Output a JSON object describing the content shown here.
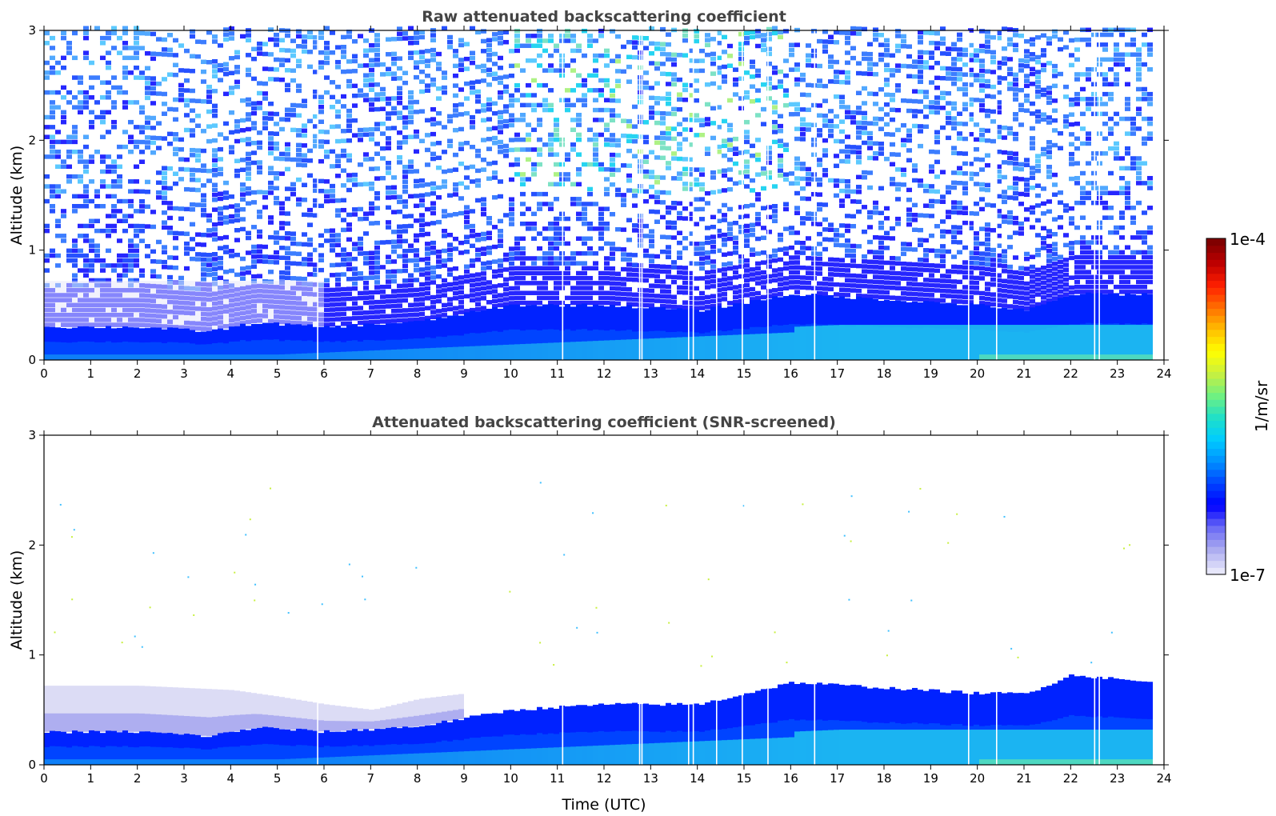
{
  "chart_data": [
    {
      "type": "heatmap",
      "title": "Raw attenuated backscattering coefficient",
      "xlabel": "",
      "ylabel": "Altitude (km)",
      "xlim": [
        0,
        24
      ],
      "ylim": [
        0,
        3
      ],
      "xticks": [
        "0",
        "1",
        "2",
        "3",
        "4",
        "5",
        "6",
        "7",
        "8",
        "9",
        "10",
        "11",
        "12",
        "13",
        "14",
        "15",
        "16",
        "17",
        "18",
        "19",
        "20",
        "21",
        "22",
        "23",
        "24"
      ],
      "yticks": [
        "0",
        "1",
        "2",
        "3"
      ],
      "data_end_hour": 23.65,
      "layer_top_km": [
        {
          "x": 0,
          "y": 0.3
        },
        {
          "x": 2,
          "y": 0.3
        },
        {
          "x": 3.5,
          "y": 0.26
        },
        {
          "x": 4.5,
          "y": 0.34
        },
        {
          "x": 6,
          "y": 0.3
        },
        {
          "x": 8,
          "y": 0.35
        },
        {
          "x": 10,
          "y": 0.5
        },
        {
          "x": 12,
          "y": 0.5
        },
        {
          "x": 14,
          "y": 0.45
        },
        {
          "x": 16,
          "y": 0.6
        },
        {
          "x": 18,
          "y": 0.55
        },
        {
          "x": 20,
          "y": 0.5
        },
        {
          "x": 21,
          "y": 0.45
        },
        {
          "x": 22,
          "y": 0.6
        },
        {
          "x": 23.65,
          "y": 0.6
        }
      ],
      "noise_level": "high",
      "data_gaps_hours": [
        5.85,
        11.1,
        12.75,
        12.8,
        13.8,
        13.9,
        14.4,
        14.95,
        15.5,
        16.5,
        19.8,
        20.4,
        22.5,
        22.6
      ]
    },
    {
      "type": "heatmap",
      "title": "Attenuated backscattering coefficient (SNR-screened)",
      "xlabel": "Time (UTC)",
      "ylabel": "Altitude (km)",
      "xlim": [
        0,
        24
      ],
      "ylim": [
        0,
        3
      ],
      "xticks": [
        "0",
        "1",
        "2",
        "3",
        "4",
        "5",
        "6",
        "7",
        "8",
        "9",
        "10",
        "11",
        "12",
        "13",
        "14",
        "15",
        "16",
        "17",
        "18",
        "19",
        "20",
        "21",
        "22",
        "23",
        "24"
      ],
      "yticks": [
        "0",
        "1",
        "2",
        "3"
      ],
      "data_end_hour": 23.65,
      "layer_top_km": [
        {
          "x": 0,
          "y": 0.3
        },
        {
          "x": 2,
          "y": 0.3
        },
        {
          "x": 3.5,
          "y": 0.26
        },
        {
          "x": 4.5,
          "y": 0.34
        },
        {
          "x": 6,
          "y": 0.3
        },
        {
          "x": 8,
          "y": 0.35
        },
        {
          "x": 10,
          "y": 0.5
        },
        {
          "x": 12,
          "y": 0.55
        },
        {
          "x": 14,
          "y": 0.55
        },
        {
          "x": 16,
          "y": 0.75
        },
        {
          "x": 18,
          "y": 0.7
        },
        {
          "x": 20,
          "y": 0.65
        },
        {
          "x": 21,
          "y": 0.65
        },
        {
          "x": 22,
          "y": 0.82
        },
        {
          "x": 23.65,
          "y": 0.75
        }
      ],
      "haze_top_km": [
        {
          "x": 0,
          "y": 0.72
        },
        {
          "x": 2,
          "y": 0.72
        },
        {
          "x": 4,
          "y": 0.68
        },
        {
          "x": 5,
          "y": 0.62
        },
        {
          "x": 6,
          "y": 0.55
        },
        {
          "x": 7,
          "y": 0.5
        },
        {
          "x": 8,
          "y": 0.6
        },
        {
          "x": 9,
          "y": 0.65
        }
      ],
      "noise_level": "low",
      "data_gaps_hours": [
        5.85,
        11.1,
        12.75,
        12.8,
        13.8,
        13.9,
        14.4,
        14.95,
        15.5,
        16.5,
        19.8,
        20.4,
        22.5,
        22.6
      ]
    }
  ],
  "colorbar": {
    "max_label": "1e-4",
    "min_label": "1e-7",
    "unit_label": "1/m/sr",
    "scale": "log",
    "stops": [
      "#e6e6fa",
      "#aaaaf0",
      "#6a6af5",
      "#0000ff",
      "#0044ff",
      "#0090ff",
      "#00ccff",
      "#20e0c8",
      "#70f080",
      "#c8f040",
      "#ffff00",
      "#ffc000",
      "#ff7000",
      "#ff2000",
      "#c00000",
      "#800000"
    ]
  }
}
